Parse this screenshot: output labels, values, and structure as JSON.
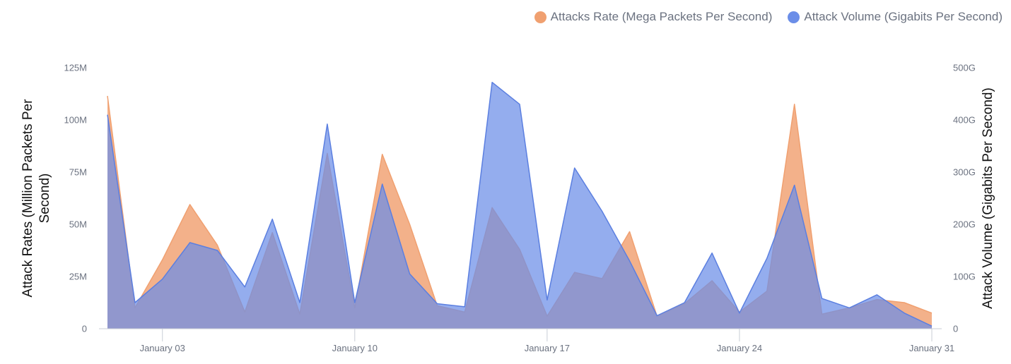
{
  "legend": {
    "rate_label": "Attacks Rate (Mega Packets Per Second)",
    "volume_label": "Attack Volume (Gigabits Per Second)"
  },
  "colors": {
    "rate": "#f0a070",
    "volume": "#6b8ee8",
    "volume_line": "#5b7fe0",
    "axis": "#c9ced6",
    "tick_text": "#6b7280"
  },
  "chart_data": {
    "type": "area",
    "ylabel_left": "Attack Rates (Million Packets Per Second)",
    "ylabel_left_lines": [
      "Attack Rates (Million Packets Per",
      "Second)"
    ],
    "ylabel_right": "Attack Volume (Gigabits Per Second)",
    "y_left_ticks": [
      "0",
      "25M",
      "50M",
      "75M",
      "100M",
      "125M"
    ],
    "y_right_ticks": [
      "0",
      "100G",
      "200G",
      "300G",
      "400G",
      "500G"
    ],
    "ylim_left": [
      0,
      125
    ],
    "ylim_right": [
      0,
      500
    ],
    "xlim": [
      0,
      30
    ],
    "x_ticks": [
      {
        "x": 2,
        "label": "January 03"
      },
      {
        "x": 9,
        "label": "January 10"
      },
      {
        "x": 16,
        "label": "January 17"
      },
      {
        "x": 23,
        "label": "January 24"
      },
      {
        "x": 30,
        "label": "January 31"
      }
    ],
    "grid": false,
    "legend_position": "top-right",
    "series": [
      {
        "name": "Attacks Rate (Mega Packets Per Second)",
        "axis": "left",
        "x": [
          0,
          1,
          2,
          3,
          4,
          5,
          6,
          7,
          8,
          9,
          10,
          11,
          12,
          13,
          14,
          15,
          16,
          17,
          18,
          19,
          20,
          21,
          22,
          23,
          24,
          25,
          26,
          27,
          28,
          29,
          30
        ],
        "values": [
          111.5,
          10,
          33,
          59.5,
          40,
          8,
          46,
          7,
          84,
          10,
          83.5,
          50,
          11,
          8,
          58,
          38,
          6,
          27,
          24,
          46.5,
          6,
          12,
          23,
          8,
          18,
          107.5,
          7,
          10,
          14,
          12.5,
          7.5
        ]
      },
      {
        "name": "Attack Volume (Gigabits Per Second)",
        "axis": "right",
        "x": [
          0,
          1,
          2,
          3,
          4,
          5,
          6,
          7,
          8,
          9,
          10,
          11,
          12,
          13,
          14,
          15,
          16,
          17,
          18,
          19,
          20,
          21,
          22,
          23,
          24,
          25,
          26,
          27,
          28,
          29,
          30
        ],
        "values": [
          410,
          50,
          95,
          165,
          150,
          80,
          210,
          50,
          392,
          50,
          277,
          105,
          48,
          42,
          472,
          430,
          55,
          308,
          225,
          130,
          25,
          50,
          145,
          30,
          135,
          275,
          58,
          40,
          65,
          30,
          5
        ]
      }
    ]
  }
}
